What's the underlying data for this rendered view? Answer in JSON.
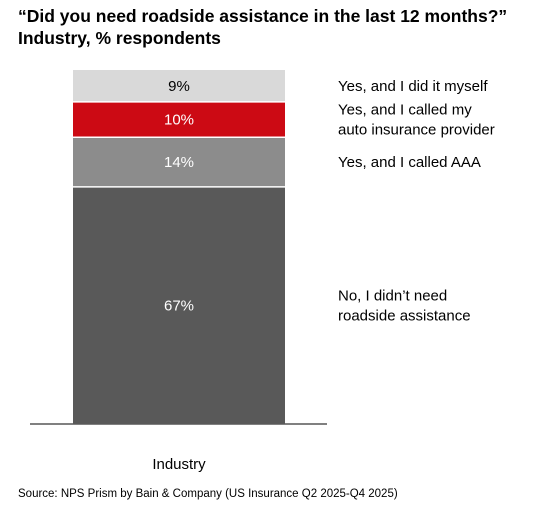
{
  "title": {
    "line1": "“Did you need roadside assistance in the last 12 months?”",
    "line2": "Industry, % respondents"
  },
  "source": "Source: NPS Prism by Bain & Company (US Insurance Q2 2025-Q4 2025)",
  "chart_data": {
    "type": "bar",
    "stacked": true,
    "categories": [
      "Industry"
    ],
    "ylim": [
      0,
      100
    ],
    "grid": false,
    "legend_placement": "right",
    "series": [
      {
        "name": [
          "No, I didn’t need",
          "roadside assistance"
        ],
        "values": [
          67
        ],
        "label": "67%",
        "color": "#595959",
        "label_color": "#ffffff"
      },
      {
        "name": [
          "Yes, and I called AAA"
        ],
        "values": [
          14
        ],
        "label": "14%",
        "color": "#8c8c8c",
        "label_color": "#ffffff"
      },
      {
        "name": [
          "Yes, and I called my",
          "auto insurance provider"
        ],
        "values": [
          10
        ],
        "label": "10%",
        "color": "#cc0a14",
        "label_color": "#ffffff"
      },
      {
        "name": [
          "Yes, and I did it myself"
        ],
        "values": [
          9
        ],
        "label": "9%",
        "color": "#d9d9d9",
        "label_color": "#000000"
      }
    ]
  }
}
